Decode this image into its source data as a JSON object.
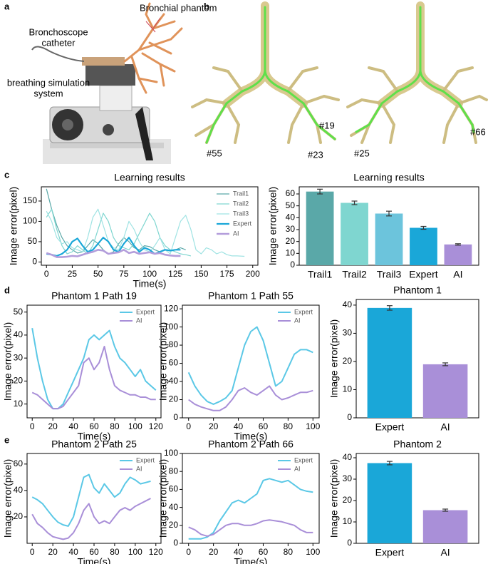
{
  "panels": {
    "a": {
      "label": "a",
      "annotations": [
        [
          "Bronchial phantom"
        ],
        [
          "Bronchoscope",
          "catheter"
        ],
        [
          "breathing simulation",
          "system"
        ]
      ]
    },
    "b": {
      "label": "b",
      "annotations": [
        "#19",
        "#55",
        "#23",
        "#25",
        "#66"
      ]
    },
    "c": {
      "label": "c"
    },
    "d": {
      "label": "d"
    },
    "e": {
      "label": "e"
    }
  },
  "chart_data": [
    {
      "type": "line",
      "title": "Learning results",
      "x_label": "Time(s)",
      "y_label": "Image error(pixel)",
      "xlim": [
        -5,
        205
      ],
      "xticks": [
        0,
        25,
        50,
        75,
        100,
        125,
        150,
        175,
        200
      ],
      "ylim": [
        -8,
        185
      ],
      "yticks": [
        0,
        50,
        100,
        150
      ],
      "legend": "upper right",
      "series": [
        {
          "name": "Trail1",
          "color": "#5aa8a8",
          "width": 1.2,
          "x": [
            0,
            5,
            10,
            15,
            20,
            25,
            30,
            35,
            40,
            45,
            50,
            55,
            60,
            65,
            70,
            75,
            80,
            85,
            90,
            95,
            100,
            105,
            110,
            115,
            120,
            125,
            130,
            135
          ],
          "values": [
            180,
            130,
            90,
            60,
            40,
            30,
            22,
            25,
            40,
            55,
            45,
            30,
            20,
            25,
            45,
            60,
            50,
            35,
            30,
            40,
            38,
            30,
            25,
            30,
            28,
            30,
            35,
            30
          ]
        },
        {
          "name": "Trail2",
          "color": "#7fd6d0",
          "width": 1.2,
          "x": [
            0,
            5,
            10,
            15,
            20,
            25,
            30,
            35,
            40,
            45,
            50,
            55,
            60,
            65,
            70,
            75,
            80,
            85,
            90,
            95,
            100,
            105,
            110,
            115,
            120,
            125,
            130,
            135,
            140
          ],
          "values": [
            110,
            130,
            80,
            40,
            20,
            25,
            40,
            30,
            20,
            40,
            80,
            120,
            100,
            60,
            40,
            35,
            30,
            45,
            70,
            95,
            120,
            100,
            60,
            40,
            30,
            25,
            20,
            18,
            15
          ]
        },
        {
          "name": "Trail3",
          "color": "#9fe3e3",
          "width": 1.2,
          "x": [
            0,
            5,
            10,
            15,
            20,
            25,
            30,
            35,
            40,
            45,
            50,
            55,
            60,
            65,
            70,
            75,
            80,
            85,
            90,
            95,
            100,
            105,
            110,
            115,
            120,
            125,
            130,
            135,
            140,
            145,
            150,
            155,
            160,
            165,
            170,
            175,
            180,
            185,
            192
          ],
          "values": [
            125,
            100,
            60,
            45,
            50,
            35,
            30,
            25,
            60,
            110,
            130,
            90,
            50,
            35,
            30,
            60,
            100,
            80,
            50,
            30,
            25,
            40,
            60,
            30,
            20,
            60,
            100,
            115,
            80,
            30,
            20,
            35,
            30,
            20,
            25,
            18,
            15,
            15,
            14
          ]
        },
        {
          "name": "Expert",
          "color": "#1aa7d8",
          "width": 2.2,
          "x": [
            0,
            5,
            10,
            15,
            20,
            25,
            30,
            35,
            40,
            45,
            50,
            55,
            60,
            65,
            70,
            75,
            80,
            85,
            90,
            95,
            100,
            105,
            110,
            115,
            120,
            125,
            130
          ],
          "values": [
            20,
            18,
            15,
            20,
            30,
            50,
            58,
            40,
            25,
            30,
            45,
            60,
            50,
            30,
            25,
            45,
            60,
            40,
            25,
            35,
            30,
            20,
            25,
            30,
            28,
            30,
            30
          ]
        },
        {
          "name": "AI",
          "color": "#b39ddb",
          "width": 2.6,
          "x": [
            0,
            5,
            10,
            15,
            20,
            25,
            30,
            35,
            40,
            45,
            50,
            55,
            60,
            65,
            70,
            75,
            80,
            85,
            90,
            95,
            100,
            105,
            110,
            115,
            120,
            125,
            130
          ],
          "values": [
            22,
            18,
            12,
            12,
            13,
            15,
            14,
            18,
            22,
            25,
            30,
            28,
            20,
            22,
            24,
            30,
            22,
            25,
            20,
            22,
            24,
            20,
            22,
            18,
            16,
            15,
            15
          ]
        }
      ]
    },
    {
      "type": "bar",
      "title": "Learning results",
      "y_label": "Image error(pixel)",
      "categories": [
        "Trail1",
        "Trail2",
        "Trail3",
        "Expert",
        "AI"
      ],
      "values": [
        62,
        52.5,
        43.5,
        31.5,
        17.5
      ],
      "errors": [
        2,
        1.5,
        2,
        1.2,
        0.6
      ],
      "colors": [
        "#5aa8a8",
        "#7fd6d0",
        "#6cc4dc",
        "#1aa7d8",
        "#a98fd8"
      ],
      "ylim": [
        0,
        66
      ],
      "yticks": [
        0,
        10,
        20,
        30,
        40,
        50,
        60
      ]
    },
    {
      "type": "line",
      "title": "Phantom 1 Path 19",
      "x_label": "Time(s)",
      "y_label": "Image error(pixel)",
      "xlim": [
        -5,
        125
      ],
      "xticks": [
        0,
        20,
        40,
        60,
        80,
        100,
        120
      ],
      "ylim": [
        4,
        53
      ],
      "yticks": [
        10,
        20,
        30,
        40,
        50
      ],
      "legend": "upper right",
      "x": [
        0,
        5,
        10,
        15,
        20,
        25,
        30,
        35,
        40,
        45,
        50,
        55,
        60,
        65,
        70,
        75,
        80,
        85,
        90,
        95,
        100,
        105,
        110,
        115,
        120
      ],
      "series": [
        {
          "name": "Expert",
          "color": "#5bc8e6",
          "width": 2,
          "values": [
            43,
            30,
            20,
            12,
            8,
            8,
            10,
            15,
            20,
            25,
            30,
            38,
            40,
            38,
            40,
            42,
            35,
            30,
            28,
            25,
            22,
            25,
            20,
            18,
            16
          ]
        },
        {
          "name": "AI",
          "color": "#a98fd8",
          "width": 2,
          "values": [
            15,
            14,
            12,
            10,
            8,
            8,
            9,
            12,
            15,
            18,
            28,
            30,
            25,
            28,
            35,
            25,
            18,
            16,
            15,
            14,
            14,
            13,
            13,
            12,
            12
          ]
        }
      ]
    },
    {
      "type": "line",
      "title": "Phantom 1 Path 55",
      "x_label": "Time(s)",
      "y_label": "Image error(pixel)",
      "xlim": [
        -5,
        105
      ],
      "xticks": [
        0,
        20,
        40,
        60,
        80,
        100
      ],
      "ylim": [
        0,
        124
      ],
      "yticks": [
        0,
        20,
        40,
        60,
        80,
        100,
        120
      ],
      "legend": "upper right",
      "x": [
        0,
        5,
        10,
        15,
        20,
        25,
        30,
        35,
        40,
        45,
        50,
        55,
        60,
        65,
        70,
        75,
        80,
        85,
        90,
        95,
        100
      ],
      "series": [
        {
          "name": "Expert",
          "color": "#5bc8e6",
          "width": 2,
          "values": [
            50,
            35,
            25,
            18,
            15,
            18,
            22,
            30,
            55,
            80,
            95,
            100,
            85,
            60,
            35,
            40,
            55,
            70,
            75,
            75,
            72
          ]
        },
        {
          "name": "AI",
          "color": "#a98fd8",
          "width": 2,
          "values": [
            20,
            15,
            12,
            10,
            8,
            8,
            12,
            20,
            30,
            33,
            28,
            25,
            30,
            35,
            25,
            20,
            22,
            25,
            28,
            28,
            30
          ]
        }
      ]
    },
    {
      "type": "bar",
      "title": "Phantom 1",
      "y_label": "Image error(pixel)",
      "categories": [
        "Expert",
        "AI"
      ],
      "values": [
        39,
        19
      ],
      "errors": [
        0.8,
        0.5
      ],
      "colors": [
        "#1aa7d8",
        "#a98fd8"
      ],
      "ylim": [
        0,
        42
      ],
      "yticks": [
        0,
        10,
        20,
        30,
        40
      ]
    },
    {
      "type": "line",
      "title": "Phantom 2 Path 25",
      "x_label": "Time(s)",
      "y_label": "Image error(pixel)",
      "xlim": [
        -5,
        125
      ],
      "xticks": [
        0,
        20,
        40,
        60,
        80,
        100,
        120
      ],
      "ylim": [
        0,
        68
      ],
      "yticks": [
        20,
        40,
        60
      ],
      "legend": "upper right",
      "x": [
        0,
        5,
        10,
        15,
        20,
        25,
        30,
        35,
        40,
        45,
        50,
        55,
        60,
        65,
        70,
        75,
        80,
        85,
        90,
        95,
        100,
        105,
        110,
        115
      ],
      "series": [
        {
          "name": "Expert",
          "color": "#5bc8e6",
          "width": 2,
          "values": [
            35,
            33,
            30,
            25,
            20,
            16,
            14,
            13,
            20,
            35,
            50,
            52,
            42,
            38,
            45,
            40,
            35,
            38,
            45,
            50,
            48,
            45,
            46,
            47
          ]
        },
        {
          "name": "AI",
          "color": "#a98fd8",
          "width": 2,
          "values": [
            22,
            15,
            12,
            8,
            5,
            4,
            3,
            4,
            8,
            15,
            25,
            30,
            20,
            15,
            17,
            15,
            20,
            25,
            27,
            25,
            28,
            30,
            32,
            34
          ]
        }
      ]
    },
    {
      "type": "line",
      "title": "Phantom 2 Path 66",
      "x_label": "Time(s)",
      "y_label": "Image error(pixel)",
      "xlim": [
        -5,
        105
      ],
      "xticks": [
        0,
        20,
        40,
        60,
        80,
        100
      ],
      "ylim": [
        0,
        100
      ],
      "yticks": [
        0,
        20,
        40,
        60,
        80,
        100
      ],
      "legend": "upper right",
      "x": [
        0,
        5,
        10,
        15,
        20,
        25,
        30,
        35,
        40,
        45,
        50,
        55,
        60,
        65,
        70,
        75,
        80,
        85,
        90,
        95,
        100
      ],
      "series": [
        {
          "name": "Expert",
          "color": "#5bc8e6",
          "width": 2,
          "values": [
            5,
            5,
            5,
            7,
            12,
            25,
            35,
            45,
            48,
            45,
            50,
            55,
            70,
            72,
            70,
            68,
            70,
            65,
            60,
            58,
            57
          ]
        },
        {
          "name": "AI",
          "color": "#a98fd8",
          "width": 2,
          "values": [
            18,
            15,
            10,
            8,
            10,
            15,
            20,
            22,
            22,
            20,
            20,
            22,
            25,
            26,
            25,
            24,
            22,
            20,
            15,
            12,
            12
          ]
        }
      ]
    },
    {
      "type": "bar",
      "title": "Phantom 2",
      "y_label": "Image error(pixel)",
      "categories": [
        "Expert",
        "AI"
      ],
      "values": [
        37.5,
        15.5
      ],
      "errors": [
        0.8,
        0.5
      ],
      "colors": [
        "#1aa7d8",
        "#a98fd8"
      ],
      "ylim": [
        0,
        42
      ],
      "yticks": [
        0,
        10,
        20,
        30,
        40
      ]
    }
  ]
}
